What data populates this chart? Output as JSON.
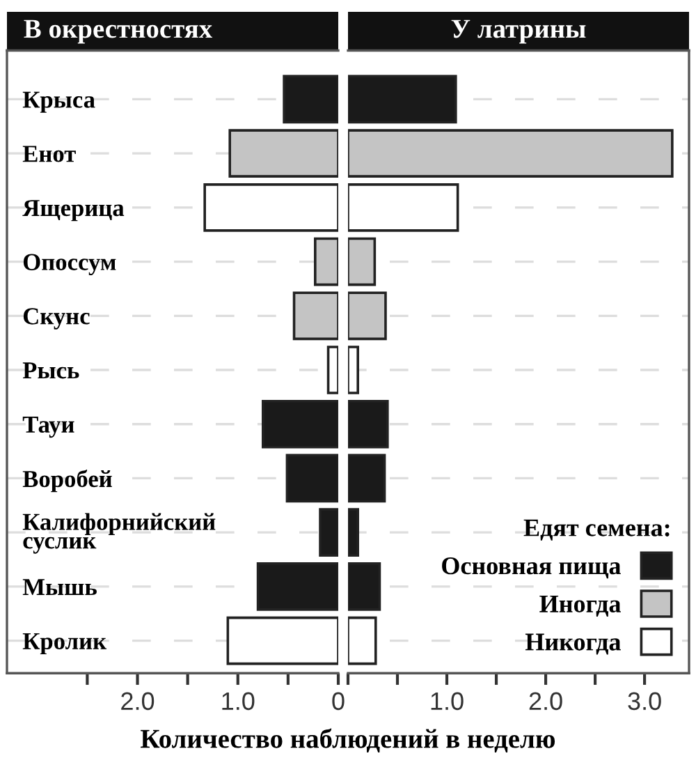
{
  "chart_data": [
    {
      "type": "bar",
      "orientation": "horizontal",
      "title": "В окрестностях",
      "xlabel": "Количество наблюдений в неделю",
      "categories": [
        "Крыса",
        "Енот",
        "Ящерица",
        "Опоссум",
        "Скунс",
        "Рысь",
        "Тауи",
        "Воробей",
        "Калифорнийский\nсуслик",
        "Мышь",
        "Кролик"
      ],
      "series": [
        {
          "color": "#1a1a1a",
          "values": [
            0.54,
            null,
            null,
            null,
            null,
            null,
            0.75,
            0.51,
            0.18,
            0.8,
            null
          ]
        },
        {
          "color": "#c4c4c4",
          "values": [
            null,
            1.08,
            null,
            0.23,
            0.44,
            null,
            null,
            null,
            null,
            null,
            null
          ]
        },
        {
          "color": "#ffffff",
          "values": [
            null,
            null,
            1.33,
            null,
            null,
            0.1,
            null,
            null,
            null,
            null,
            1.1
          ]
        }
      ],
      "xlim": [
        3.3,
        0
      ],
      "xticks": [
        {
          "value": 2.5,
          "label": null
        },
        {
          "value": 2,
          "label": "2.0"
        },
        {
          "value": 1.5,
          "label": null
        },
        {
          "value": 1,
          "label": "1.0"
        },
        {
          "value": 0.5,
          "label": null
        },
        0
      ],
      "grid": "y"
    },
    {
      "type": "bar",
      "orientation": "horizontal",
      "title": "У латрины",
      "legend_title": "Едят семена:",
      "categories": [
        null,
        null,
        null,
        null,
        null,
        null,
        null,
        null,
        null,
        null,
        null
      ],
      "series": [
        {
          "name": "Основная пища",
          "color": "#1a1a1a",
          "values": [
            1.09,
            null,
            null,
            null,
            null,
            null,
            0.4,
            0.37,
            0.1,
            0.32,
            null
          ]
        },
        {
          "name": "Иногда",
          "color": "#c4c4c4",
          "values": [
            null,
            3.28,
            null,
            0.27,
            0.38,
            null,
            null,
            null,
            null,
            null,
            null
          ]
        },
        {
          "name": "Никогда",
          "color": "#ffffff",
          "values": [
            null,
            null,
            1.11,
            null,
            null,
            0.1,
            null,
            null,
            null,
            null,
            0.28
          ]
        }
      ],
      "xlim": [
        0,
        3.45
      ],
      "xticks": [
        {
          "value": 0,
          "label": null
        },
        {
          "value": 0.5,
          "label": null
        },
        {
          "value": 1,
          "label": "1.0"
        },
        {
          "value": 1.5,
          "label": null
        },
        {
          "value": 2,
          "label": "2.0"
        },
        {
          "value": 2.5,
          "label": null
        },
        {
          "value": 3,
          "label": "3.0"
        }
      ],
      "grid": "y",
      "legend": "lower right",
      "tick_labels": "x"
    }
  ]
}
